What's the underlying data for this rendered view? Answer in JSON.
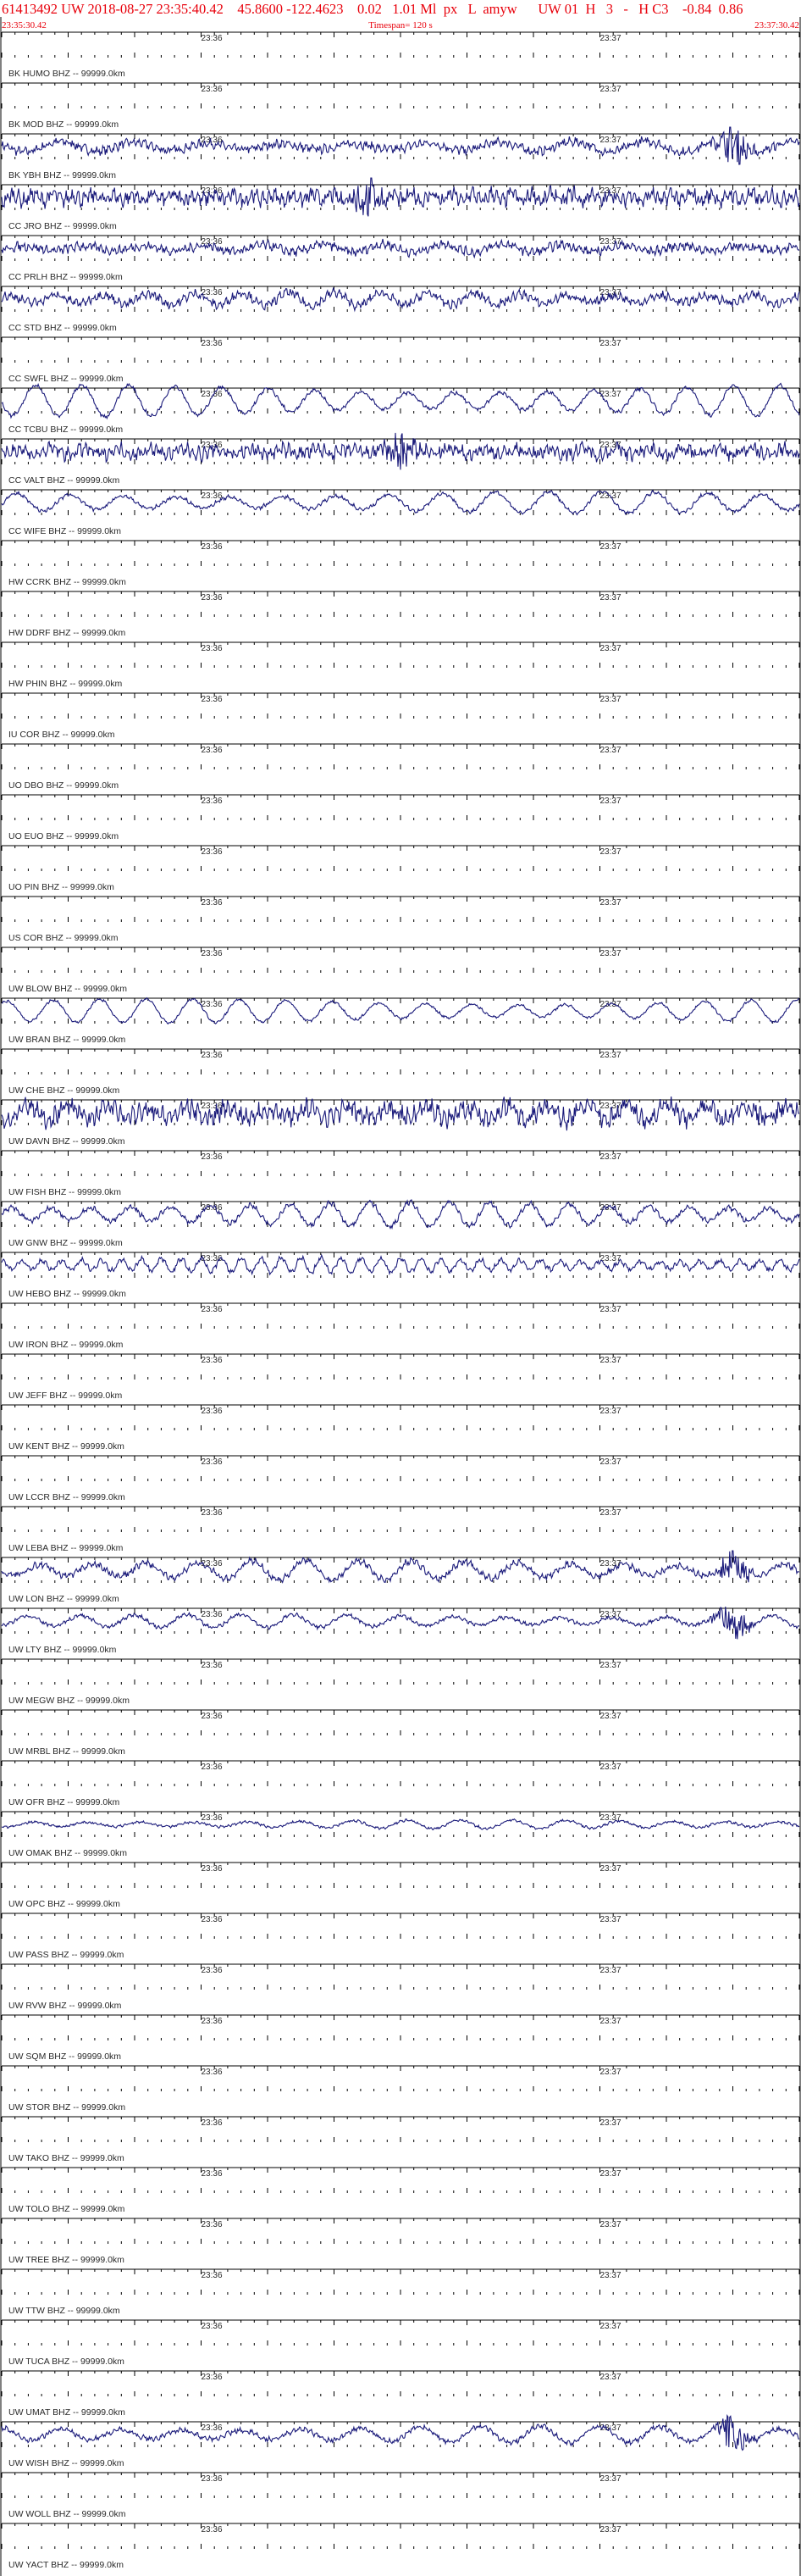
{
  "header": {
    "main": "61413492 UW 2018-08-27 23:35:40.42    45.8600 -122.4623    0.02   1.01 Ml  px   L  amyw      UW 01  H   3   -   H C3    -0.84  0.86",
    "start_time": "23:35:30.42",
    "timespan": "Timespan= 120 s",
    "end_time": "23:37:30.42"
  },
  "colors": {
    "header_text": "#e8000b",
    "trace": "#1a1a7a",
    "axis": "#000000",
    "label": "#2a2a2a"
  },
  "chart_data": {
    "type": "line",
    "x_unit": "s",
    "x_range": [
      0,
      120
    ],
    "tick_labels": [
      {
        "text": "23:36",
        "x": 30
      },
      {
        "text": "23:37",
        "x": 90
      }
    ],
    "distance_suffix": " -- 99999.0km",
    "traces": [
      {
        "station": "BK HUMO BHZ",
        "amp": 0,
        "period": 0,
        "noise": 0,
        "burst": 0
      },
      {
        "station": "BK MOD BHZ",
        "amp": 0,
        "period": 0,
        "noise": 0,
        "burst": 0
      },
      {
        "station": "BK YBH BHZ",
        "amp": 0.45,
        "period": 11,
        "noise": 0.35,
        "burst": 1
      },
      {
        "station": "CC JRO BHZ",
        "amp": 0.35,
        "period": 3,
        "noise": 0.6,
        "burst": 2
      },
      {
        "station": "CC PRLH BHZ",
        "amp": 0.35,
        "period": 9,
        "noise": 0.35,
        "burst": 0
      },
      {
        "station": "CC STD BHZ",
        "amp": 0.55,
        "period": 7,
        "noise": 0.35,
        "burst": 0
      },
      {
        "station": "CC SWFL BHZ",
        "amp": 0,
        "period": 0,
        "noise": 0,
        "burst": 0
      },
      {
        "station": "CC TCBU BHZ",
        "amp": 1.3,
        "period": 7,
        "noise": 0.15,
        "burst": 0
      },
      {
        "station": "CC VALT BHZ",
        "amp": 0.25,
        "period": 5,
        "noise": 0.55,
        "burst": 3
      },
      {
        "station": "CC WIFE BHZ",
        "amp": 0.9,
        "period": 8,
        "noise": 0.15,
        "burst": 0
      },
      {
        "station": "HW CCRK BHZ",
        "amp": 0,
        "period": 0,
        "noise": 0,
        "burst": 0
      },
      {
        "station": "HW DDRF BHZ",
        "amp": 0,
        "period": 0,
        "noise": 0,
        "burst": 0
      },
      {
        "station": "HW PHIN BHZ",
        "amp": 0,
        "period": 0,
        "noise": 0,
        "burst": 0
      },
      {
        "station": "IU COR BHZ",
        "amp": 0,
        "period": 0,
        "noise": 0,
        "burst": 0
      },
      {
        "station": "UO DBO BHZ",
        "amp": 0,
        "period": 0,
        "noise": 0,
        "burst": 0
      },
      {
        "station": "UO EUO BHZ",
        "amp": 0,
        "period": 0,
        "noise": 0,
        "burst": 0
      },
      {
        "station": "UO PIN BHZ",
        "amp": 0,
        "period": 0,
        "noise": 0,
        "burst": 0
      },
      {
        "station": "US COR BHZ",
        "amp": 0,
        "period": 0,
        "noise": 0,
        "burst": 0
      },
      {
        "station": "UW BLOW BHZ",
        "amp": 0,
        "period": 0,
        "noise": 0,
        "burst": 0
      },
      {
        "station": "UW BRAN BHZ",
        "amp": 1.0,
        "period": 7,
        "noise": 0.1,
        "burst": 0
      },
      {
        "station": "UW CHE BHZ",
        "amp": 0,
        "period": 0,
        "noise": 0,
        "burst": 0
      },
      {
        "station": "UW DAVN BHZ",
        "amp": 0.6,
        "period": 6,
        "noise": 0.75,
        "burst": 0
      },
      {
        "station": "UW FISH BHZ",
        "amp": 0,
        "period": 0,
        "noise": 0,
        "burst": 0
      },
      {
        "station": "UW GNW BHZ",
        "amp": 1.0,
        "period": 6,
        "noise": 0.2,
        "burst": 0
      },
      {
        "station": "UW HEBO BHZ",
        "amp": 0.6,
        "period": 3,
        "noise": 0.2,
        "burst": 0
      },
      {
        "station": "UW IRON BHZ",
        "amp": 0,
        "period": 0,
        "noise": 0,
        "burst": 0
      },
      {
        "station": "UW JEFF BHZ",
        "amp": 0,
        "period": 0,
        "noise": 0,
        "burst": 0
      },
      {
        "station": "UW KENT BHZ",
        "amp": 0,
        "period": 0,
        "noise": 0,
        "burst": 0
      },
      {
        "station": "UW LCCR BHZ",
        "amp": 0,
        "period": 0,
        "noise": 0,
        "burst": 0
      },
      {
        "station": "UW LEBA BHZ",
        "amp": 0,
        "period": 0,
        "noise": 0,
        "burst": 0
      },
      {
        "station": "UW LON BHZ",
        "amp": 0.8,
        "period": 8,
        "noise": 0.25,
        "burst": 1
      },
      {
        "station": "UW LTY BHZ",
        "amp": 0.55,
        "period": 8,
        "noise": 0.15,
        "burst": 1
      },
      {
        "station": "UW MEGW BHZ",
        "amp": 0,
        "period": 0,
        "noise": 0,
        "burst": 0
      },
      {
        "station": "UW MRBL BHZ",
        "amp": 0,
        "period": 0,
        "noise": 0,
        "burst": 0
      },
      {
        "station": "UW OFR BHZ",
        "amp": 0,
        "period": 0,
        "noise": 0,
        "burst": 0
      },
      {
        "station": "UW OMAK BHZ",
        "amp": 0.35,
        "period": 8,
        "noise": 0.1,
        "burst": 0
      },
      {
        "station": "UW OPC BHZ",
        "amp": 0,
        "period": 0,
        "noise": 0,
        "burst": 0
      },
      {
        "station": "UW PASS BHZ",
        "amp": 0,
        "period": 0,
        "noise": 0,
        "burst": 0
      },
      {
        "station": "UW RVW BHZ",
        "amp": 0,
        "period": 0,
        "noise": 0,
        "burst": 0
      },
      {
        "station": "UW SQM BHZ",
        "amp": 0,
        "period": 0,
        "noise": 0,
        "burst": 0
      },
      {
        "station": "UW STOR BHZ",
        "amp": 0,
        "period": 0,
        "noise": 0,
        "burst": 0
      },
      {
        "station": "UW TAKO BHZ",
        "amp": 0,
        "period": 0,
        "noise": 0,
        "burst": 0
      },
      {
        "station": "UW TOLO BHZ",
        "amp": 0,
        "period": 0,
        "noise": 0,
        "burst": 0
      },
      {
        "station": "UW TREE BHZ",
        "amp": 0,
        "period": 0,
        "noise": 0,
        "burst": 0
      },
      {
        "station": "UW TTW BHZ",
        "amp": 0,
        "period": 0,
        "noise": 0,
        "burst": 0
      },
      {
        "station": "UW TUCA BHZ",
        "amp": 0,
        "period": 0,
        "noise": 0,
        "burst": 0
      },
      {
        "station": "UW UMAT BHZ",
        "amp": 0,
        "period": 0,
        "noise": 0,
        "burst": 0
      },
      {
        "station": "UW WISH BHZ",
        "amp": 0.7,
        "period": 9,
        "noise": 0.2,
        "burst": 1
      },
      {
        "station": "UW WOLL BHZ",
        "amp": 0,
        "period": 0,
        "noise": 0,
        "burst": 0
      },
      {
        "station": "UW YACT BHZ",
        "amp": 0,
        "period": 0,
        "noise": 0,
        "burst": 0
      }
    ]
  }
}
